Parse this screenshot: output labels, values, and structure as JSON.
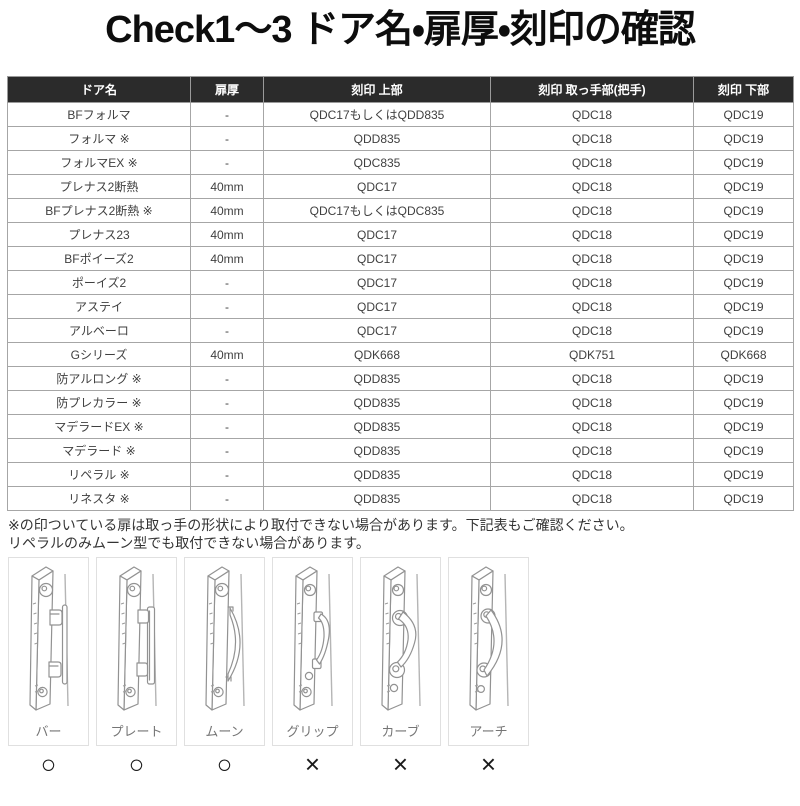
{
  "title": "Check1～3 ドア名・扉厚・刻印の確認",
  "colors": {
    "header_bg": "#2b2b2b",
    "header_text": "#ffffff",
    "cell_text": "#3f3f3f",
    "border": "#a6a6a6",
    "mark_color": "#1a1a1a"
  },
  "table": {
    "headers": [
      "ドア名",
      "扉厚",
      "刻印 上部",
      "刻印 取っ手部(把手)",
      "刻印 下部"
    ],
    "rows": [
      [
        "BFフォルマ",
        "-",
        "QDC17もしくはQDD835",
        "QDC18",
        "QDC19"
      ],
      [
        "フォルマ ※",
        "-",
        "QDD835",
        "QDC18",
        "QDC19"
      ],
      [
        "フォルマEX ※",
        "-",
        "QDC835",
        "QDC18",
        "QDC19"
      ],
      [
        "プレナス2断熱",
        "40mm",
        "QDC17",
        "QDC18",
        "QDC19"
      ],
      [
        "BFプレナス2断熱 ※",
        "40mm",
        "QDC17もしくはQDC835",
        "QDC18",
        "QDC19"
      ],
      [
        "プレナス23",
        "40mm",
        "QDC17",
        "QDC18",
        "QDC19"
      ],
      [
        "BFポイーズ2",
        "40mm",
        "QDC17",
        "QDC18",
        "QDC19"
      ],
      [
        "ポーイズ2",
        "-",
        "QDC17",
        "QDC18",
        "QDC19"
      ],
      [
        "アステイ",
        "-",
        "QDC17",
        "QDC18",
        "QDC19"
      ],
      [
        "アルベーロ",
        "-",
        "QDC17",
        "QDC18",
        "QDC19"
      ],
      [
        "Gシリーズ",
        "40mm",
        "QDK668",
        "QDK751",
        "QDK668"
      ],
      [
        "防アルロング ※",
        "-",
        "QDD835",
        "QDC18",
        "QDC19"
      ],
      [
        "防プレカラー ※",
        "-",
        "QDD835",
        "QDC18",
        "QDC19"
      ],
      [
        "マデラードEX ※",
        "-",
        "QDD835",
        "QDC18",
        "QDC19"
      ],
      [
        "マデラード ※",
        "-",
        "QDD835",
        "QDC18",
        "QDC19"
      ],
      [
        "リペラル ※",
        "-",
        "QDD835",
        "QDC18",
        "QDC19"
      ],
      [
        "リネスタ ※",
        "-",
        "QDD835",
        "QDC18",
        "QDC19"
      ]
    ]
  },
  "footnotes": [
    "※の印ついている扉は取っ手の形状により取付できない場合があります。下記表もご確認ください。",
    "リペラルのみムーン型でも取付できない場合があります。"
  ],
  "handles": {
    "items": [
      {
        "name": "bar",
        "label": "バー",
        "mark": "○"
      },
      {
        "name": "plate",
        "label": "プレート",
        "mark": "○"
      },
      {
        "name": "moon",
        "label": "ムーン",
        "mark": "○"
      },
      {
        "name": "grip",
        "label": "グリップ",
        "mark": "×"
      },
      {
        "name": "curve",
        "label": "カーブ",
        "mark": "×"
      },
      {
        "name": "arch",
        "label": "アーチ",
        "mark": "×"
      }
    ]
  }
}
